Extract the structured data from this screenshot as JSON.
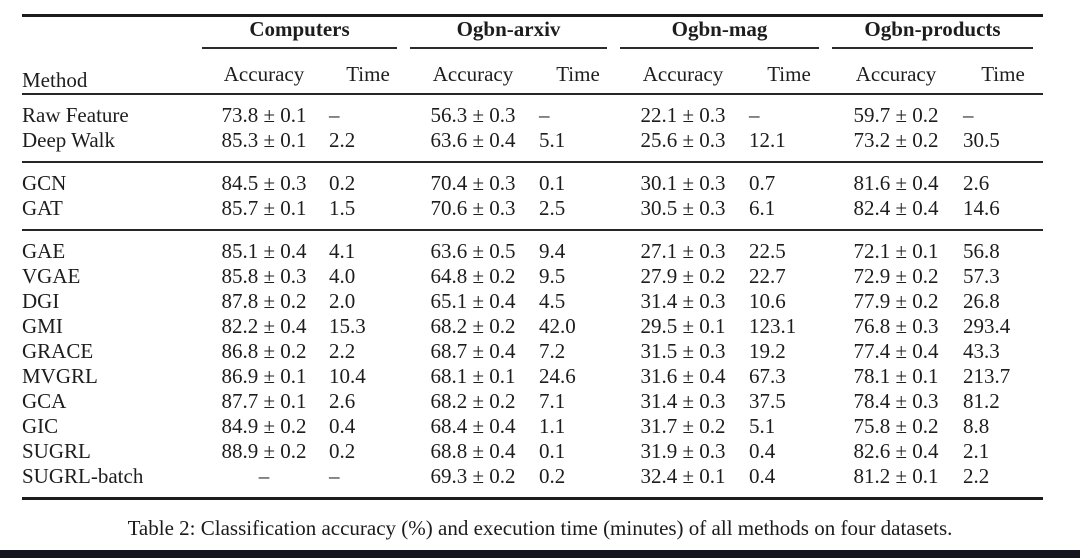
{
  "table": {
    "caption": "Table 2: Classification accuracy (%) and execution time (minutes) of all methods on four datasets.",
    "method_header": "Method",
    "groups": [
      {
        "label": "Computers"
      },
      {
        "label": "Ogbn-arxiv"
      },
      {
        "label": "Ogbn-mag"
      },
      {
        "label": "Ogbn-products"
      }
    ],
    "sub_headers": [
      "Accuracy",
      "Time"
    ],
    "sections": [
      {
        "rows": [
          {
            "method": "Raw Feature",
            "bold_method": false,
            "bold_cells": [],
            "cells": [
              "73.8 ± 0.1",
              "–",
              "56.3 ± 0.3",
              "–",
              "22.1 ± 0.3",
              "–",
              "59.7 ± 0.2",
              "–"
            ]
          },
          {
            "method": "Deep Walk",
            "bold_method": false,
            "bold_cells": [],
            "cells": [
              "85.3 ± 0.1",
              "2.2",
              "63.6 ± 0.4",
              "5.1",
              "25.6 ± 0.3",
              "12.1",
              "73.2 ± 0.2",
              "30.5"
            ]
          }
        ]
      },
      {
        "rows": [
          {
            "method": "GCN",
            "bold_method": false,
            "bold_cells": [],
            "cells": [
              "84.5 ± 0.3",
              "0.2",
              "70.4 ± 0.3",
              "0.1",
              "30.1 ± 0.3",
              "0.7",
              "81.6 ± 0.4",
              "2.6"
            ]
          },
          {
            "method": "GAT",
            "bold_method": false,
            "bold_cells": [
              2
            ],
            "cells": [
              "85.7 ± 0.1",
              "1.5",
              "70.6 ± 0.3",
              "2.5",
              "30.5 ± 0.3",
              "6.1",
              "82.4 ± 0.4",
              "14.6"
            ]
          }
        ]
      },
      {
        "rows": [
          {
            "method": "GAE",
            "bold_method": false,
            "bold_cells": [],
            "cells": [
              "85.1 ± 0.4",
              "4.1",
              "63.6 ± 0.5",
              "9.4",
              "27.1 ± 0.3",
              "22.5",
              "72.1 ± 0.1",
              "56.8"
            ]
          },
          {
            "method": "VGAE",
            "bold_method": false,
            "bold_cells": [],
            "cells": [
              "85.8 ± 0.3",
              "4.0",
              "64.8 ± 0.2",
              "9.5",
              "27.9 ± 0.2",
              "22.7",
              "72.9 ± 0.2",
              "57.3"
            ]
          },
          {
            "method": "DGI",
            "bold_method": false,
            "bold_cells": [],
            "cells": [
              "87.8 ± 0.2",
              "2.0",
              "65.1 ± 0.4",
              "4.5",
              "31.4 ± 0.3",
              "10.6",
              "77.9 ± 0.2",
              "26.8"
            ]
          },
          {
            "method": "GMI",
            "bold_method": false,
            "bold_cells": [],
            "cells": [
              "82.2 ± 0.4",
              "15.3",
              "68.2 ± 0.2",
              "42.0",
              "29.5 ± 0.1",
              "123.1",
              "76.8 ± 0.3",
              "293.4"
            ]
          },
          {
            "method": "GRACE",
            "bold_method": false,
            "bold_cells": [],
            "cells": [
              "86.8 ± 0.2",
              "2.2",
              "68.7 ± 0.4",
              "7.2",
              "31.5 ± 0.3",
              "19.2",
              "77.4 ± 0.4",
              "43.3"
            ]
          },
          {
            "method": "MVGRL",
            "bold_method": false,
            "bold_cells": [],
            "cells": [
              "86.9 ± 0.1",
              "10.4",
              "68.1 ± 0.1",
              "24.6",
              "31.6 ± 0.4",
              "67.3",
              "78.1 ± 0.1",
              "213.7"
            ]
          },
          {
            "method": "GCA",
            "bold_method": false,
            "bold_cells": [],
            "cells": [
              "87.7 ± 0.1",
              "2.6",
              "68.2 ± 0.2",
              "7.1",
              "31.4 ± 0.3",
              "37.5",
              "78.4 ± 0.3",
              "81.2"
            ]
          },
          {
            "method": "GIC",
            "bold_method": false,
            "bold_cells": [],
            "cells": [
              "84.9 ± 0.2",
              "0.4",
              "68.4 ± 0.4",
              "1.1",
              "31.7 ± 0.2",
              "5.1",
              "75.8 ± 0.2",
              "8.8"
            ]
          },
          {
            "method": "SUGRL",
            "bold_method": true,
            "bold_cells": [
              0,
              6
            ],
            "cells": [
              "88.9 ± 0.2",
              "0.2",
              "68.8 ± 0.4",
              "0.1",
              "31.9 ± 0.3",
              "0.4",
              "82.6 ± 0.4",
              "2.1"
            ]
          },
          {
            "method": "SUGRL-batch",
            "bold_method": true,
            "bold_cells": [
              4
            ],
            "cells": [
              "–",
              "–",
              "69.3 ± 0.2",
              "0.2",
              "32.4 ± 0.1",
              "0.4",
              "81.2 ± 0.1",
              "2.2"
            ]
          }
        ]
      }
    ]
  },
  "footer_bar_color": "#14141c"
}
